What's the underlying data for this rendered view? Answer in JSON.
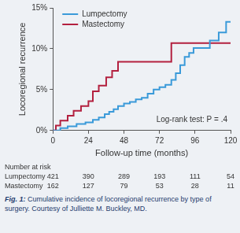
{
  "chart_data": {
    "type": "line",
    "x_label": "Follow-up time (months)",
    "y_label": "Locoregional recurrence",
    "xlim": [
      0,
      120
    ],
    "xticks": [
      0,
      24,
      48,
      72,
      96,
      120
    ],
    "ylim": [
      0,
      15
    ],
    "yticks": [
      {
        "value": 0,
        "label": "0%"
      },
      {
        "value": 5,
        "label": "5%"
      },
      {
        "value": 10,
        "label": "10%"
      },
      {
        "value": 15,
        "label": "15%"
      }
    ],
    "grid": false,
    "legend": "upper left",
    "series": [
      {
        "name": "Lumpectomy",
        "color": "#3a9ad9",
        "line_style": "step",
        "x": [
          0,
          5,
          10,
          16,
          22,
          27,
          31,
          35,
          38,
          41,
          44,
          48,
          52,
          56,
          60,
          64,
          68,
          72,
          76,
          80,
          83,
          86,
          89,
          92,
          95,
          106,
          112,
          117,
          120
        ],
        "values": [
          0,
          0.3,
          0.5,
          0.8,
          1.0,
          1.3,
          1.6,
          2.0,
          2.3,
          2.6,
          3.0,
          3.3,
          3.5,
          3.8,
          4.0,
          4.5,
          5.0,
          5.3,
          5.6,
          6.2,
          7.0,
          8.0,
          9.0,
          9.5,
          10.1,
          11.0,
          12.0,
          13.3,
          13.3
        ]
      },
      {
        "name": "Mastectomy",
        "color": "#b3203f",
        "line_style": "step",
        "x": [
          0,
          2,
          5,
          10,
          14,
          19,
          24,
          27,
          31,
          36,
          40,
          44,
          80,
          120
        ],
        "values": [
          0,
          0.6,
          1.2,
          1.8,
          2.4,
          3.0,
          3.6,
          4.8,
          5.5,
          6.5,
          7.3,
          8.4,
          10.7,
          10.7
        ]
      }
    ],
    "annotation": "Log-rank test: P = .4",
    "number_at_risk": {
      "title": "Number at risk",
      "rows": [
        {
          "name": "Lumpectomy",
          "values": [
            421,
            390,
            289,
            193,
            111,
            54
          ]
        },
        {
          "name": "Mastectomy",
          "values": [
            162,
            127,
            79,
            53,
            28,
            11
          ]
        }
      ]
    },
    "caption": {
      "label": "Fig. 1:",
      "text": "Cumulative incidence of locoregional recurrence by type of surgery. Courtesy of Julliette M. Buckley, MD."
    }
  }
}
